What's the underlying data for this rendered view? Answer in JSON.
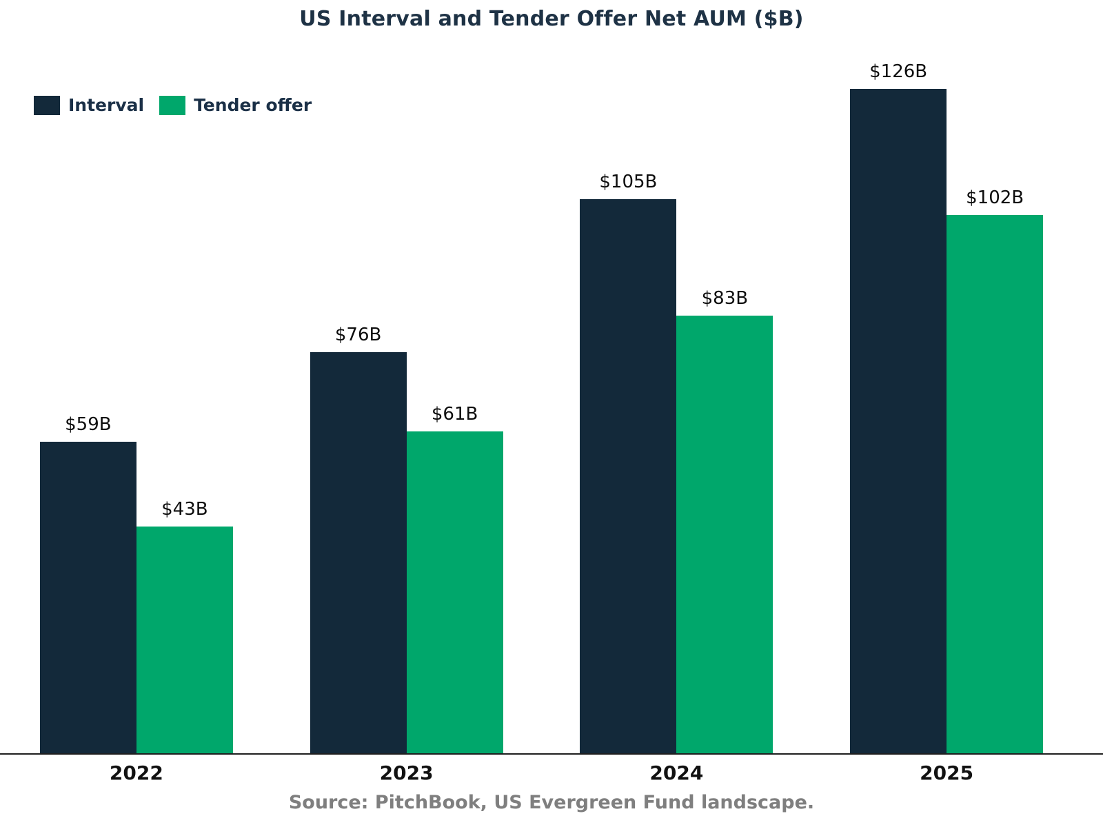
{
  "title": "US Interval and Tender Offer Net AUM ($B)",
  "source": "Source: PitchBook, US Evergreen Fund landscape.",
  "colors": {
    "interval": "#13293a",
    "tender_offer": "#00a76b",
    "title_text": "#1e3245",
    "axis_line": "#1f1f1f",
    "source_text": "#7f7f7f",
    "background": "#ffffff"
  },
  "chart_data": {
    "type": "bar",
    "title": "US Interval and Tender Offer Net AUM ($B)",
    "categories": [
      "2022",
      "2023",
      "2024",
      "2025"
    ],
    "series": [
      {
        "name": "Interval",
        "color": "#13293a",
        "values": [
          59,
          76,
          105,
          126
        ],
        "labels": [
          "$59B",
          "$76B",
          "$105B",
          "$126B"
        ]
      },
      {
        "name": "Tender offer",
        "color": "#00a76b",
        "values": [
          43,
          61,
          83,
          102
        ],
        "labels": [
          "$43B",
          "$61B",
          "$83B",
          "$102B"
        ]
      }
    ],
    "xlabel": "",
    "ylabel": "",
    "ylim": [
      0,
      130
    ],
    "grid": false,
    "y_axis_visible": false,
    "legend_position": "top-left",
    "value_labels_visible": true
  }
}
